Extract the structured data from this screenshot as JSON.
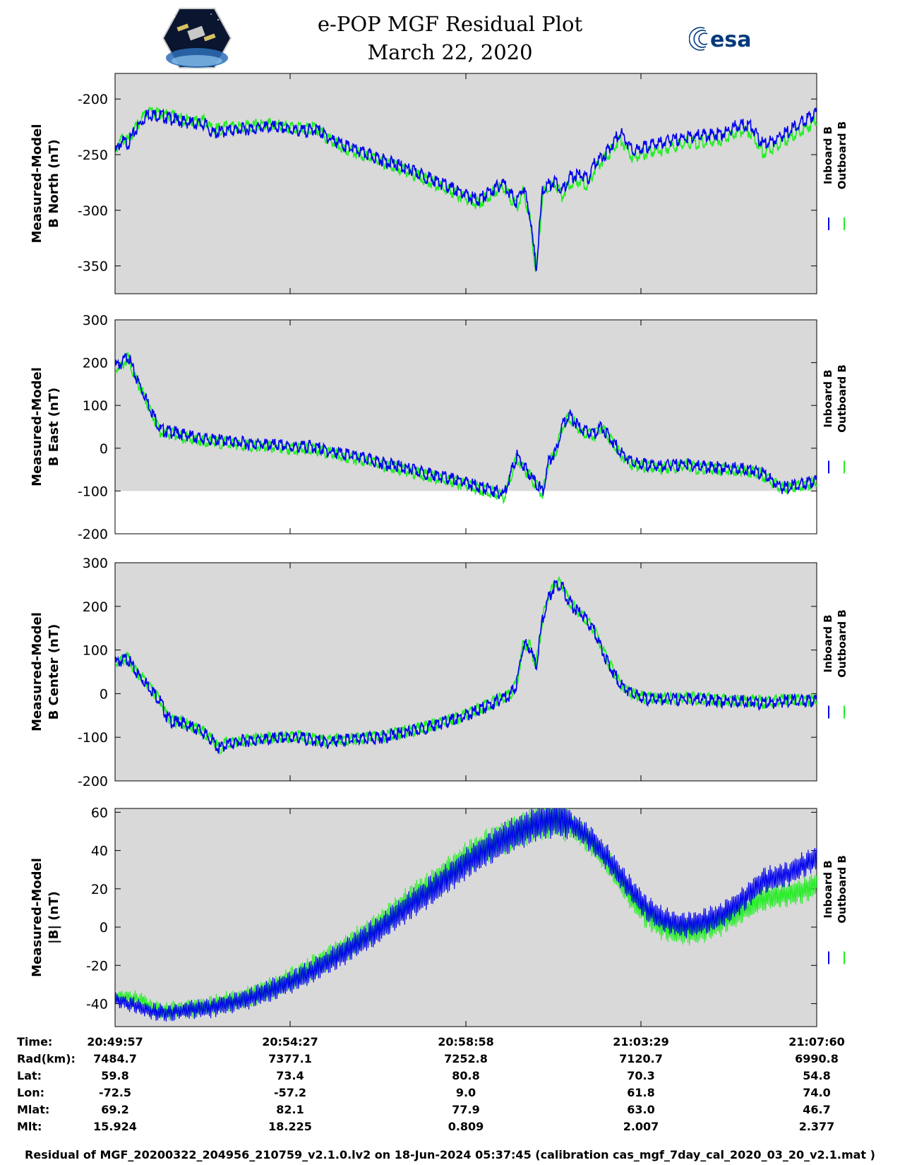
{
  "title": {
    "line1": "e-POP MGF Residual Plot",
    "line2": "March 22, 2020"
  },
  "logos": {
    "mission": "cassiope-mission-logo",
    "agency_text": "esa"
  },
  "colors": {
    "inboard": "#0000ee",
    "outboard": "#22ee22",
    "panel_bg": "#d9d9d9"
  },
  "legend": {
    "inboard": "Inboard B",
    "outboard": "Outboard B"
  },
  "chart_data": [
    {
      "type": "line",
      "ylabel_line1": "Measured-Model",
      "ylabel_line2": "B North (nT)",
      "ylim": [
        -375,
        -177
      ],
      "yticks": [
        "-200",
        "-250",
        "-300",
        "-350"
      ],
      "ytick_values": [
        -200,
        -250,
        -300,
        -350
      ],
      "xlim": [
        0,
        1083
      ],
      "x": [
        0,
        10,
        20,
        35,
        50,
        70,
        90,
        110,
        140,
        150,
        180,
        240,
        290,
        310,
        330,
        350,
        380,
        420,
        460,
        500,
        540,
        560,
        580,
        600,
        610,
        620,
        630,
        640,
        650,
        660,
        680,
        690,
        700,
        720,
        730,
        740,
        760,
        780,
        800,
        810,
        830,
        870,
        900,
        940,
        960,
        980,
        1000,
        1020,
        1040,
        1060,
        1083
      ],
      "series": [
        {
          "name": "Inboard B",
          "values": [
            -245,
            -235,
            -237,
            -222,
            -210,
            -212,
            -215,
            -218,
            -220,
            -228,
            -225,
            -222,
            -226,
            -224,
            -232,
            -238,
            -245,
            -253,
            -262,
            -272,
            -283,
            -288,
            -280,
            -272,
            -282,
            -290,
            -275,
            -300,
            -350,
            -278,
            -270,
            -280,
            -268,
            -265,
            -270,
            -255,
            -244,
            -226,
            -245,
            -242,
            -238,
            -233,
            -230,
            -228,
            -221,
            -220,
            -238,
            -233,
            -226,
            -218,
            -210
          ]
        },
        {
          "name": "Outboard B",
          "values": [
            -243,
            -233,
            -235,
            -220,
            -208,
            -210,
            -213,
            -216,
            -217,
            -225,
            -222,
            -220,
            -224,
            -223,
            -234,
            -240,
            -247,
            -255,
            -264,
            -275,
            -286,
            -291,
            -283,
            -275,
            -285,
            -294,
            -279,
            -304,
            -354,
            -282,
            -274,
            -285,
            -273,
            -270,
            -276,
            -260,
            -248,
            -232,
            -250,
            -247,
            -244,
            -238,
            -236,
            -233,
            -226,
            -226,
            -245,
            -240,
            -233,
            -225,
            -217
          ]
        }
      ]
    },
    {
      "type": "line",
      "ylabel_line1": "Measured-Model",
      "ylabel_line2": "B East (nT)",
      "ylim": [
        -200,
        300
      ],
      "yticks": [
        "300",
        "200",
        "100",
        "0",
        "-100",
        "-200"
      ],
      "ytick_values": [
        300,
        200,
        100,
        0,
        -100,
        -200
      ],
      "xlim": [
        0,
        1083
      ],
      "x": [
        0,
        10,
        20,
        30,
        40,
        55,
        70,
        90,
        110,
        140,
        170,
        200,
        240,
        280,
        300,
        320,
        330,
        350,
        400,
        450,
        500,
        540,
        560,
        580,
        590,
        600,
        620,
        650,
        660,
        670,
        680,
        690,
        700,
        720,
        740,
        750,
        760,
        780,
        800,
        840,
        880,
        900,
        980,
        1000,
        1030,
        1083
      ],
      "series": [
        {
          "name": "Inboard B",
          "values": [
            200,
            205,
            225,
            180,
            150,
            100,
            50,
            45,
            38,
            28,
            25,
            20,
            15,
            10,
            12,
            5,
            0,
            -5,
            -22,
            -40,
            -58,
            -72,
            -82,
            -90,
            -95,
            -100,
            -10,
            -75,
            -95,
            -20,
            0,
            60,
            85,
            50,
            40,
            60,
            40,
            0,
            -28,
            -35,
            -30,
            -35,
            -42,
            -52,
            -85,
            -70
          ]
        },
        {
          "name": "Outboard B",
          "values": [
            195,
            200,
            220,
            175,
            145,
            95,
            45,
            40,
            33,
            23,
            20,
            15,
            10,
            5,
            7,
            0,
            -5,
            -10,
            -27,
            -45,
            -63,
            -77,
            -87,
            -95,
            -100,
            -105,
            -15,
            -80,
            -98,
            -25,
            -5,
            55,
            82,
            47,
            37,
            57,
            37,
            -4,
            -32,
            -39,
            -34,
            -39,
            -46,
            -56,
            -88,
            -73
          ]
        }
      ]
    },
    {
      "type": "line",
      "ylabel_line1": "Measured-Model",
      "ylabel_line2": "B Center (nT)",
      "ylim": [
        -200,
        300
      ],
      "yticks": [
        "300",
        "200",
        "100",
        "0",
        "-100",
        "-200"
      ],
      "ytick_values": [
        300,
        200,
        100,
        0,
        -100,
        -200
      ],
      "xlim": [
        0,
        1083
      ],
      "x": [
        0,
        10,
        20,
        30,
        40,
        55,
        70,
        80,
        90,
        100,
        110,
        130,
        150,
        160,
        170,
        200,
        240,
        280,
        330,
        340,
        380,
        420,
        460,
        500,
        540,
        560,
        580,
        600,
        610,
        620,
        630,
        640,
        650,
        660,
        670,
        680,
        690,
        700,
        710,
        720,
        740,
        760,
        780,
        800,
        820,
        860,
        900,
        940,
        980,
        1000,
        1040,
        1083
      ],
      "series": [
        {
          "name": "Inboard B",
          "values": [
            78,
            82,
            88,
            60,
            45,
            20,
            -10,
            -45,
            -60,
            -55,
            -65,
            -75,
            -100,
            -120,
            -110,
            -100,
            -97,
            -92,
            -105,
            -100,
            -97,
            -90,
            -78,
            -62,
            -45,
            -30,
            -18,
            0,
            5,
            30,
            120,
            115,
            70,
            180,
            230,
            260,
            255,
            220,
            200,
            190,
            150,
            80,
            30,
            5,
            -5,
            -5,
            -5,
            -10,
            -10,
            -15,
            -8,
            -10
          ]
        },
        {
          "name": "Outboard B",
          "values": [
            80,
            84,
            90,
            62,
            47,
            22,
            -8,
            -43,
            -58,
            -53,
            -63,
            -73,
            -98,
            -118,
            -108,
            -98,
            -95,
            -90,
            -103,
            -98,
            -95,
            -88,
            -76,
            -60,
            -43,
            -28,
            -16,
            2,
            7,
            32,
            122,
            117,
            72,
            182,
            232,
            262,
            257,
            222,
            202,
            192,
            152,
            82,
            32,
            7,
            -3,
            -3,
            -3,
            -8,
            -8,
            -13,
            -6,
            -8
          ]
        }
      ]
    },
    {
      "type": "line",
      "ylabel_line1": "Measured-Model",
      "ylabel_line2": "|B| (nT)",
      "ylim": [
        -52,
        62
      ],
      "yticks": [
        "60",
        "40",
        "20",
        "0",
        "-20",
        "-40"
      ],
      "ytick_values": [
        60,
        40,
        20,
        0,
        -20,
        -40
      ],
      "xlim": [
        0,
        1083
      ],
      "x": [
        0,
        20,
        40,
        60,
        80,
        100,
        120,
        150,
        200,
        250,
        300,
        350,
        400,
        450,
        500,
        550,
        600,
        650,
        680,
        700,
        720,
        740,
        760,
        780,
        800,
        820,
        840,
        860,
        880,
        900,
        920,
        940,
        960,
        980,
        1000,
        1020,
        1040,
        1060,
        1083
      ],
      "series": [
        {
          "name": "Inboard B",
          "values": [
            -38,
            -40,
            -42,
            -44,
            -45,
            -44,
            -43,
            -42,
            -38,
            -32,
            -24,
            -14,
            -3,
            10,
            22,
            35,
            46,
            54,
            57,
            55,
            50,
            44,
            36,
            27,
            18,
            10,
            5,
            2,
            1,
            2,
            4,
            7,
            12,
            18,
            24,
            26,
            28,
            32,
            36
          ]
        },
        {
          "name": "Outboard B",
          "values": [
            -36,
            -37,
            -38,
            -43,
            -44,
            -43,
            -42,
            -41,
            -37,
            -31,
            -22,
            -12,
            -1,
            13,
            25,
            38,
            47,
            54,
            56,
            54,
            49,
            42,
            34,
            24,
            14,
            6,
            1,
            -2,
            -3,
            -2,
            0,
            3,
            7,
            11,
            15,
            16,
            17,
            19,
            22
          ]
        }
      ]
    }
  ],
  "orbit_info": {
    "rows": [
      {
        "label": "Time:",
        "values": [
          "20:49:57",
          "20:54:27",
          "20:58:58",
          "21:03:29",
          "21:07:60"
        ]
      },
      {
        "label": "Rad(km):",
        "values": [
          "7484.7",
          "7377.1",
          "7252.8",
          "7120.7",
          "6990.8"
        ]
      },
      {
        "label": "Lat:",
        "values": [
          "59.8",
          "73.4",
          "80.8",
          "70.3",
          "54.8"
        ]
      },
      {
        "label": "Lon:",
        "values": [
          "-72.5",
          "-57.2",
          "9.0",
          "61.8",
          "74.0"
        ]
      },
      {
        "label": "Mlat:",
        "values": [
          "69.2",
          "82.1",
          "77.9",
          "63.0",
          "46.7"
        ]
      },
      {
        "label": "Mlt:",
        "values": [
          "15.924",
          "18.225",
          "0.809",
          "2.007",
          "2.377"
        ]
      }
    ]
  },
  "footer": "Residual of MGF_20200322_204956_210759_v2.1.0.lv2 on 18-Jun-2024 05:37:45 (calibration cas_mgf_7day_cal_2020_03_20_v2.1.mat )"
}
